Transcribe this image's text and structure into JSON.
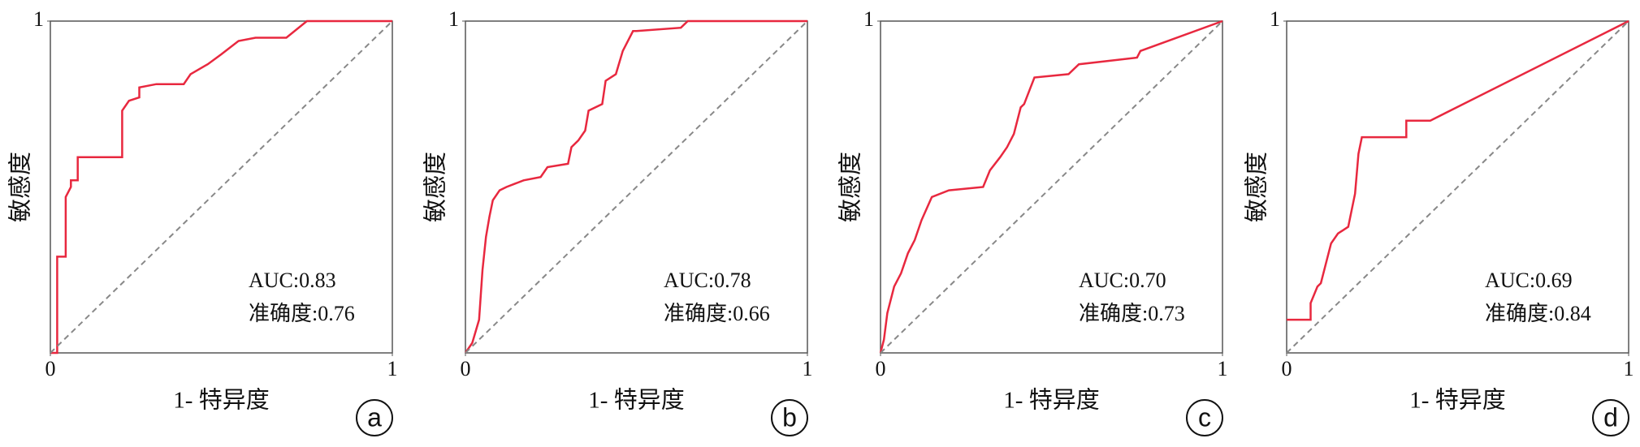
{
  "chart_data": [
    {
      "type": "line",
      "panel": "a",
      "x_label": "1- 特异度",
      "y_label": "敏感度",
      "annotations": [
        "AUC:0.83",
        "准确度:0.76"
      ],
      "xlim": [
        0,
        1
      ],
      "ylim": [
        0,
        1
      ],
      "xticks": [
        0,
        1
      ],
      "yticks": [
        1
      ],
      "series": [
        {
          "color": "#e8283f",
          "x": [
            0,
            0.02,
            0.02,
            0.045,
            0.045,
            0.06,
            0.06,
            0.08,
            0.08,
            0.21,
            0.21,
            0.23,
            0.26,
            0.26,
            0.31,
            0.39,
            0.41,
            0.46,
            0.5,
            0.55,
            0.6,
            0.69,
            0.75,
            1
          ],
          "values": [
            0,
            0,
            0.29,
            0.29,
            0.47,
            0.5,
            0.52,
            0.52,
            0.59,
            0.59,
            0.73,
            0.76,
            0.77,
            0.8,
            0.81,
            0.81,
            0.84,
            0.87,
            0.9,
            0.94,
            0.95,
            0.95,
            1,
            1
          ]
        },
        {
          "color": "#888888",
          "dash": true,
          "x": [
            0,
            1
          ],
          "values": [
            0,
            1
          ]
        }
      ]
    },
    {
      "type": "line",
      "panel": "b",
      "x_label": "1- 特异度",
      "y_label": "敏感度",
      "annotations": [
        "AUC:0.78",
        "准确度:0.66"
      ],
      "xlim": [
        0,
        1
      ],
      "ylim": [
        0,
        1
      ],
      "xticks": [
        0,
        1
      ],
      "yticks": [
        1
      ],
      "series": [
        {
          "color": "#e8283f",
          "x": [
            0,
            0.02,
            0.04,
            0.05,
            0.06,
            0.07,
            0.08,
            0.1,
            0.12,
            0.17,
            0.22,
            0.24,
            0.3,
            0.31,
            0.33,
            0.35,
            0.36,
            0.4,
            0.41,
            0.44,
            0.46,
            0.49,
            0.5,
            0.63,
            0.65,
            1
          ],
          "values": [
            0,
            0.03,
            0.1,
            0.25,
            0.35,
            0.41,
            0.46,
            0.49,
            0.5,
            0.52,
            0.53,
            0.56,
            0.57,
            0.62,
            0.64,
            0.67,
            0.73,
            0.75,
            0.82,
            0.84,
            0.91,
            0.97,
            0.97,
            0.98,
            1,
            1
          ]
        },
        {
          "color": "#888888",
          "dash": true,
          "x": [
            0,
            1
          ],
          "values": [
            0,
            1
          ]
        }
      ]
    },
    {
      "type": "line",
      "panel": "c",
      "x_label": "1- 特异度",
      "y_label": "敏感度",
      "annotations": [
        "AUC:0.70",
        "准确度:0.73"
      ],
      "xlim": [
        0,
        1
      ],
      "ylim": [
        0,
        1
      ],
      "xticks": [
        0,
        1
      ],
      "yticks": [
        1
      ],
      "series": [
        {
          "color": "#e8283f",
          "x": [
            0,
            0.01,
            0.02,
            0.04,
            0.06,
            0.08,
            0.1,
            0.12,
            0.15,
            0.2,
            0.3,
            0.32,
            0.35,
            0.37,
            0.39,
            0.41,
            0.42,
            0.45,
            0.55,
            0.58,
            0.75,
            0.76,
            1
          ],
          "values": [
            0,
            0.04,
            0.12,
            0.2,
            0.24,
            0.3,
            0.34,
            0.4,
            0.47,
            0.49,
            0.5,
            0.55,
            0.59,
            0.62,
            0.66,
            0.74,
            0.75,
            0.83,
            0.84,
            0.87,
            0.89,
            0.91,
            1
          ]
        },
        {
          "color": "#888888",
          "dash": true,
          "x": [
            0,
            1
          ],
          "values": [
            0,
            1
          ]
        }
      ]
    },
    {
      "type": "line",
      "panel": "d",
      "x_label": "1- 特异度",
      "y_label": "敏感度",
      "annotations": [
        "AUC:0.69",
        "准确度:0.84"
      ],
      "xlim": [
        0,
        1
      ],
      "ylim": [
        0,
        1
      ],
      "xticks": [
        0,
        1
      ],
      "yticks": [
        1
      ],
      "series": [
        {
          "color": "#e8283f",
          "x": [
            0,
            0.07,
            0.07,
            0.09,
            0.1,
            0.13,
            0.15,
            0.18,
            0.2,
            0.21,
            0.22,
            0.35,
            0.35,
            0.42,
            1
          ],
          "values": [
            0.1,
            0.1,
            0.15,
            0.2,
            0.21,
            0.33,
            0.36,
            0.38,
            0.48,
            0.6,
            0.65,
            0.65,
            0.7,
            0.7,
            1
          ]
        },
        {
          "color": "#888888",
          "dash": true,
          "x": [
            0,
            1
          ],
          "values": [
            0,
            1
          ]
        }
      ]
    }
  ]
}
